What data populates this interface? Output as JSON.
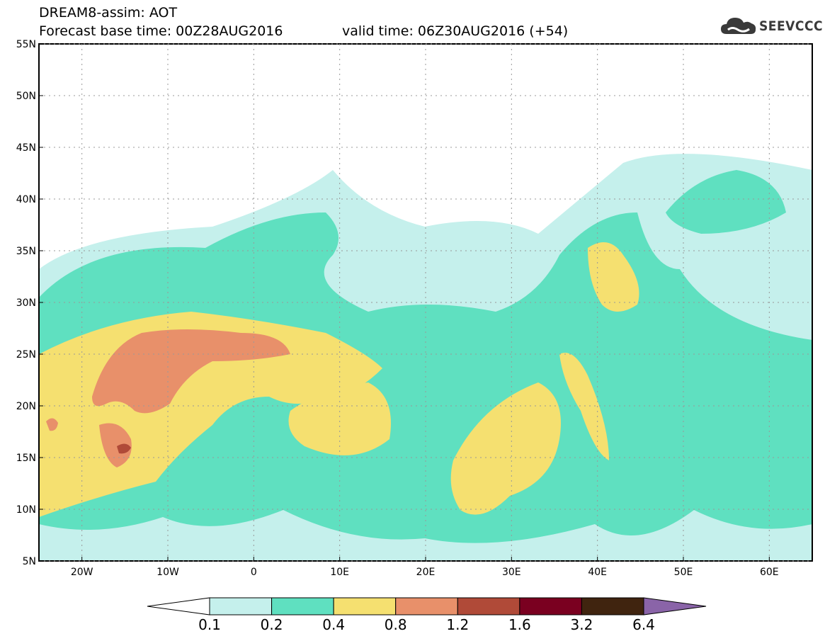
{
  "title": {
    "line1": "DREAM8-assim: AOT",
    "line2": "Forecast base time: 00Z28AUG2016",
    "line3": "valid time: 06Z30AUG2016 (+54)"
  },
  "logo": {
    "text": "SEEVCCC",
    "icon": "cloud-icon"
  },
  "map": {
    "lon_ticks": [
      "20W",
      "10W",
      "0",
      "10E",
      "20E",
      "30E",
      "40E",
      "50E",
      "60E"
    ],
    "lat_ticks": [
      "55N",
      "50N",
      "45N",
      "40N",
      "35N",
      "30N",
      "25N",
      "20N",
      "15N",
      "10N",
      "5N"
    ],
    "lon_range": [
      -25,
      65
    ],
    "lat_range": [
      5,
      55
    ]
  },
  "colorbar": {
    "labels": [
      "0.1",
      "0.2",
      "0.4",
      "0.8",
      "1.2",
      "1.6",
      "3.2",
      "6.4"
    ],
    "colors": [
      "#ffffff",
      "#c5f0ec",
      "#5fe0c0",
      "#f5e070",
      "#e8906a",
      "#b04a38",
      "#7a0020",
      "#40240f",
      "#8a64a8"
    ]
  }
}
